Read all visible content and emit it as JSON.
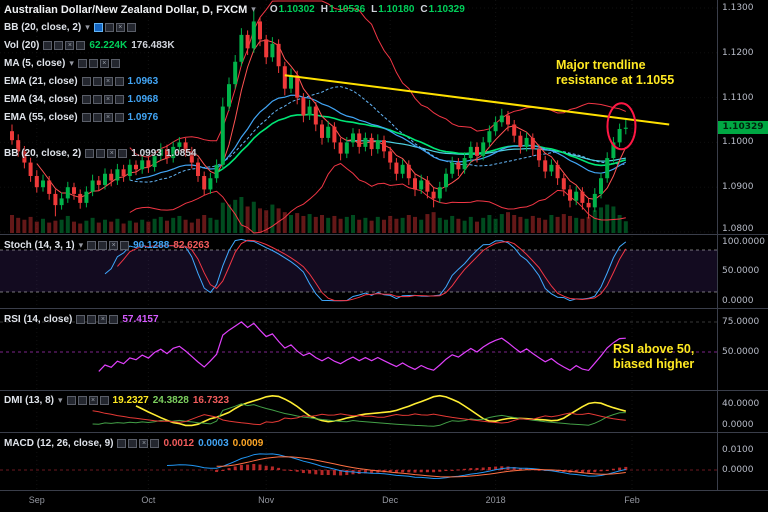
{
  "header": {
    "symbol": "Australian Dollar/New Zealand Dollar, D, FXCM",
    "ohlc": {
      "o_label": "O",
      "o": "1.10302",
      "h_label": "H",
      "h": "1.10536",
      "l_label": "L",
      "l": "1.10180",
      "c_label": "C",
      "c": "1.10329"
    }
  },
  "icons": {
    "caret_down": "▾",
    "close": "×"
  },
  "indicators": {
    "bb": {
      "label": "BB (20, close, 2)"
    },
    "vol": {
      "label": "Vol (20)",
      "v1": "62.224K",
      "v2": "176.483K"
    },
    "ma": {
      "label": "MA (5, close)"
    },
    "ema21": {
      "label": "EMA (21, close)",
      "value": "1.0963"
    },
    "ema34": {
      "label": "EMA (34, close)",
      "value": "1.0968"
    },
    "ema55": {
      "label": "EMA (55, close)",
      "value": "1.0976"
    },
    "bb2": {
      "label": "BB (20, close, 2)",
      "v1": "1.0993",
      "v2": "1.0854"
    },
    "stoch": {
      "label": "Stoch (14, 3, 1)",
      "v1": "90.1288",
      "v2": "82.6263"
    },
    "rsi": {
      "label": "RSI (14, close)",
      "value": "57.4157"
    },
    "dmi": {
      "label": "DMI (13, 8)",
      "v1": "19.2327",
      "v2": "24.3828",
      "v3": "16.7323"
    },
    "macd": {
      "label": "MACD (12, 26, close, 9)",
      "v1": "0.0012",
      "v2": "0.0003",
      "v3": "0.0009"
    }
  },
  "annotations": {
    "trendline_text": [
      "Major trendline",
      "resistance at 1.1055"
    ],
    "rsi_text": [
      "RSI above 50,",
      "biased higher"
    ]
  },
  "axes": {
    "price": [
      "1.1300",
      "1.1200",
      "1.1100",
      "1.1000",
      "1.0900",
      "1.0800"
    ],
    "stoch": [
      "100.0000",
      "50.0000",
      "0.0000"
    ],
    "rsi": [
      "75.0000",
      "50.0000"
    ],
    "dmi": [
      "40.0000",
      "0.0000"
    ],
    "macd": [
      "0.0100",
      "0.0000"
    ],
    "last_price": "1.10329"
  },
  "chart_data": {
    "type": "candlestick",
    "symbol": "AUD/NZD",
    "interval": "D",
    "feed": "FXCM",
    "title": "Australian Dollar/New Zealand Dollar, D, FXCM",
    "price_range": [
      1.08,
      1.13
    ],
    "months": [
      {
        "label": "Sep",
        "i": 4
      },
      {
        "label": "Oct",
        "i": 22
      },
      {
        "label": "Nov",
        "i": 41
      },
      {
        "label": "Dec",
        "i": 61
      },
      {
        "label": "2018",
        "i": 78
      },
      {
        "label": "Feb",
        "i": 100
      }
    ],
    "candles": [
      [
        1.1025,
        1.104,
        1.0995,
        1.1005
      ],
      [
        1.1005,
        1.1018,
        1.0968,
        1.098
      ],
      [
        1.098,
        1.0992,
        1.0942,
        1.0955
      ],
      [
        1.0955,
        1.0966,
        1.0912,
        1.0925
      ],
      [
        1.0925,
        1.0938,
        1.0888,
        1.09
      ],
      [
        1.09,
        1.0928,
        1.089,
        1.0915
      ],
      [
        1.0915,
        1.0925,
        1.0872,
        1.0885
      ],
      [
        1.0885,
        1.0895,
        1.0835,
        1.086
      ],
      [
        1.086,
        1.0888,
        1.085,
        1.0875
      ],
      [
        1.0875,
        1.0912,
        1.0865,
        1.09
      ],
      [
        1.09,
        1.091,
        1.0872,
        1.0885
      ],
      [
        1.0885,
        1.0895,
        1.0852,
        1.0865
      ],
      [
        1.0865,
        1.0902,
        1.0855,
        1.089
      ],
      [
        1.089,
        1.0928,
        1.088,
        1.0915
      ],
      [
        1.0915,
        1.0925,
        1.0892,
        1.0905
      ],
      [
        1.0905,
        1.0942,
        1.0895,
        1.093
      ],
      [
        1.093,
        1.094,
        1.0902,
        1.0915
      ],
      [
        1.0915,
        1.0952,
        1.0905,
        1.094
      ],
      [
        1.094,
        1.095,
        1.0912,
        1.0925
      ],
      [
        1.0925,
        1.0962,
        1.0915,
        1.095
      ],
      [
        1.095,
        1.096,
        1.0927,
        1.094
      ],
      [
        1.094,
        1.0972,
        1.093,
        1.096
      ],
      [
        1.096,
        1.097,
        1.0932,
        1.0945
      ],
      [
        1.0945,
        1.0982,
        1.0935,
        1.097
      ],
      [
        1.097,
        1.0998,
        1.096,
        1.0985
      ],
      [
        1.0985,
        1.0995,
        1.0952,
        1.0965
      ],
      [
        1.0965,
        1.1002,
        1.0955,
        1.099
      ],
      [
        1.099,
        1.1012,
        1.098,
        1.1
      ],
      [
        1.1,
        1.101,
        1.0968,
        1.098
      ],
      [
        1.098,
        1.099,
        1.0942,
        1.0955
      ],
      [
        1.0955,
        1.0965,
        1.0912,
        1.0925
      ],
      [
        1.0925,
        1.0935,
        1.0882,
        1.0895
      ],
      [
        1.0895,
        1.0932,
        1.0885,
        1.092
      ],
      [
        1.092,
        1.0962,
        1.091,
        1.095
      ],
      [
        1.095,
        1.11,
        1.094,
        1.108
      ],
      [
        1.108,
        1.1145,
        1.107,
        1.113
      ],
      [
        1.113,
        1.1195,
        1.112,
        1.118
      ],
      [
        1.118,
        1.1255,
        1.117,
        1.124
      ],
      [
        1.124,
        1.125,
        1.1195,
        1.121
      ],
      [
        1.121,
        1.13,
        1.12,
        1.127
      ],
      [
        1.127,
        1.128,
        1.1215,
        1.123
      ],
      [
        1.123,
        1.124,
        1.1175,
        1.119
      ],
      [
        1.119,
        1.1235,
        1.118,
        1.122
      ],
      [
        1.122,
        1.123,
        1.1155,
        1.117
      ],
      [
        1.117,
        1.118,
        1.1105,
        1.112
      ],
      [
        1.112,
        1.1165,
        1.111,
        1.115
      ],
      [
        1.115,
        1.116,
        1.1085,
        1.11
      ],
      [
        1.11,
        1.111,
        1.1045,
        1.106
      ],
      [
        1.106,
        1.1095,
        1.105,
        1.108
      ],
      [
        1.108,
        1.109,
        1.1025,
        1.104
      ],
      [
        1.104,
        1.105,
        1.0995,
        1.101
      ],
      [
        1.101,
        1.1048,
        1.1,
        1.1035
      ],
      [
        1.1035,
        1.1045,
        1.0985,
        1.1
      ],
      [
        1.1,
        1.101,
        1.096,
        1.0975
      ],
      [
        1.0975,
        1.1012,
        1.0965,
        1.1
      ],
      [
        1.1,
        1.1032,
        1.099,
        1.102
      ],
      [
        1.102,
        1.103,
        1.0975,
        1.099
      ],
      [
        1.099,
        1.1022,
        1.098,
        1.101
      ],
      [
        1.101,
        1.102,
        1.097,
        1.0985
      ],
      [
        1.0985,
        1.1018,
        1.0975,
        1.1005
      ],
      [
        1.1005,
        1.1015,
        1.0965,
        1.098
      ],
      [
        1.098,
        1.099,
        1.094,
        1.0955
      ],
      [
        1.0955,
        1.0965,
        1.0915,
        1.093
      ],
      [
        1.093,
        1.0962,
        1.092,
        1.095
      ],
      [
        1.095,
        1.096,
        1.0905,
        1.092
      ],
      [
        1.092,
        1.093,
        1.088,
        1.0895
      ],
      [
        1.0895,
        1.0928,
        1.0885,
        1.0915
      ],
      [
        1.0915,
        1.0925,
        1.0875,
        1.089
      ],
      [
        1.089,
        1.09,
        1.0855,
        1.0875
      ],
      [
        1.0875,
        1.0912,
        1.0865,
        1.09
      ],
      [
        1.09,
        1.0942,
        1.089,
        1.093
      ],
      [
        1.093,
        1.0968,
        1.092,
        1.0955
      ],
      [
        1.0955,
        1.0965,
        1.0925,
        1.094
      ],
      [
        1.094,
        1.0978,
        1.093,
        1.0965
      ],
      [
        1.0965,
        1.1002,
        1.0955,
        1.099
      ],
      [
        1.099,
        1.1,
        1.0955,
        1.097
      ],
      [
        1.097,
        1.1012,
        1.096,
        1.1
      ],
      [
        1.1,
        1.1038,
        1.099,
        1.1025
      ],
      [
        1.1025,
        1.1058,
        1.1015,
        1.1045
      ],
      [
        1.1045,
        1.1075,
        1.1035,
        1.106
      ],
      [
        1.106,
        1.107,
        1.1025,
        1.104
      ],
      [
        1.104,
        1.105,
        1.1,
        1.1015
      ],
      [
        1.1015,
        1.1025,
        1.0975,
        1.099
      ],
      [
        1.099,
        1.1022,
        1.098,
        1.101
      ],
      [
        1.101,
        1.102,
        1.097,
        1.0985
      ],
      [
        1.0985,
        1.0995,
        1.0945,
        1.096
      ],
      [
        1.096,
        1.097,
        1.092,
        1.0935
      ],
      [
        1.0935,
        1.0962,
        1.0925,
        1.095
      ],
      [
        1.095,
        1.096,
        1.0905,
        1.092
      ],
      [
        1.092,
        1.093,
        1.088,
        1.0895
      ],
      [
        1.0895,
        1.0905,
        1.0855,
        1.087
      ],
      [
        1.087,
        1.0902,
        1.086,
        1.089
      ],
      [
        1.089,
        1.09,
        1.085,
        1.0865
      ],
      [
        1.0865,
        1.0875,
        1.083,
        1.0855
      ],
      [
        1.0855,
        1.0898,
        1.0845,
        1.0885
      ],
      [
        1.0885,
        1.0932,
        1.0875,
        1.092
      ],
      [
        1.092,
        1.0978,
        1.091,
        1.0965
      ],
      [
        1.0965,
        1.1012,
        1.0955,
        1.1
      ],
      [
        1.1,
        1.1042,
        1.099,
        1.103
      ],
      [
        1.10302,
        1.10536,
        1.1018,
        1.10329
      ]
    ],
    "volumes": [
      95,
      80,
      70,
      85,
      60,
      75,
      55,
      65,
      70,
      90,
      60,
      50,
      65,
      80,
      55,
      70,
      60,
      75,
      50,
      65,
      55,
      70,
      60,
      75,
      85,
      65,
      80,
      90,
      70,
      55,
      75,
      95,
      80,
      70,
      160,
      150,
      175,
      190,
      140,
      165,
      130,
      120,
      150,
      130,
      110,
      95,
      105,
      90,
      100,
      85,
      95,
      80,
      90,
      75,
      85,
      95,
      70,
      80,
      65,
      85,
      70,
      90,
      75,
      80,
      95,
      85,
      70,
      100,
      110,
      80,
      70,
      90,
      75,
      65,
      85,
      60,
      80,
      95,
      75,
      100,
      110,
      95,
      85,
      75,
      90,
      80,
      70,
      95,
      85,
      100,
      90,
      80,
      75,
      85,
      120,
      135,
      150,
      140,
      95,
      62
    ],
    "overlays": [
      "BB(20,2)",
      "MA(5)",
      "EMA(21)",
      "EMA(34)",
      "EMA(55)",
      "Vol(20)"
    ],
    "oscillators": [
      "Stoch(14,3,1)",
      "RSI(14)",
      "DMI(13,8)",
      "MACD(12,26,9)"
    ],
    "trendline": {
      "from": {
        "index": 44,
        "price": 1.115
      },
      "to": {
        "index": 106,
        "price": 1.104
      }
    },
    "highlight_ellipse": {
      "index": 98.3,
      "price": 1.1036
    },
    "colors": {
      "up": "#00b34a",
      "down": "#ef3a3a",
      "bb": "#f23645",
      "bb_basis": "#64b5f6",
      "ma5": "#ff5252",
      "ema21": "#42a5f5",
      "ema34": "#00e676",
      "ema55": "#4dd0e1",
      "trendline": "#ffe100",
      "annotation": "#ffe922",
      "stoch_k": "#40a9ff",
      "stoch_d": "#f23645",
      "rsi": "#e040fb",
      "adx": "#ffee33",
      "plus_di": "#43a047",
      "minus_di": "#e53935",
      "macd": "#2196f3",
      "signal": "#ff7043",
      "hist": "#d32f2f",
      "last_price_bg": "#00a843"
    }
  }
}
